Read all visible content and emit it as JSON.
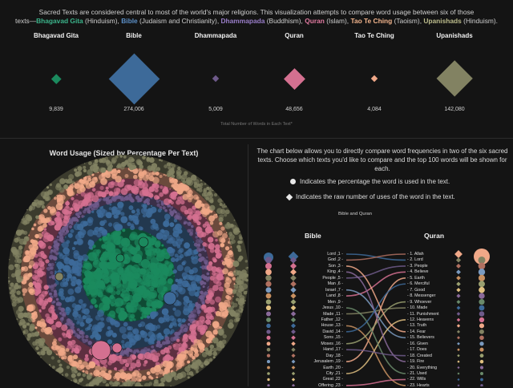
{
  "intro": {
    "line1": "Sacred Texts are considered central to most of the world's major religions. This visualization attempts to compare word usage between six of those",
    "line2_prefix": "texts—",
    "segments": [
      {
        "name": "Bhagavad Gita",
        "religion": " (Hinduism), ",
        "color": "#3bb38a"
      },
      {
        "name": "Bible",
        "religion": " (Judaism and Christianity), ",
        "color": "#5b8fc7"
      },
      {
        "name": "Dhammapada",
        "religion": " (Buddhism), ",
        "color": "#9a7ec9"
      },
      {
        "name": "Quran",
        "religion": " (Islam), ",
        "color": "#e07aa0"
      },
      {
        "name": "Tao Te Ching",
        "religion": " (Taoism), ",
        "color": "#f2b48c"
      },
      {
        "name": "Upanishads",
        "religion": " (Hinduism).",
        "color": "#bcbc8c"
      }
    ]
  },
  "texts": [
    {
      "name": "Bhagavad Gita",
      "count": "9,839",
      "value": 9839,
      "color": "#1b8a5e"
    },
    {
      "name": "Bible",
      "count": "274,006",
      "value": 274006,
      "color": "#3d6a99"
    },
    {
      "name": "Dhammapada",
      "count": "5,009",
      "value": 5009,
      "color": "#6e5a8a"
    },
    {
      "name": "Quran",
      "count": "48,656",
      "value": 48656,
      "color": "#d47090"
    },
    {
      "name": "Tao Te Ching",
      "count": "4,084",
      "value": 4084,
      "color": "#f0a888"
    },
    {
      "name": "Upanishads",
      "count": "142,080",
      "value": 142080,
      "color": "#828262"
    }
  ],
  "total_label": "Total Number of Words in Each Text*",
  "left_panel": {
    "title": "Word Usage (Sized by Percentage Per Text)"
  },
  "right_panel": {
    "description": "The chart below allows you to directly compare word frequencies in two of the six sacred texts. Choose which texts you'd like to compare and the top 100 words will be shown for each.",
    "legend_percentage": "Indicates the percentage the word is used in the text.",
    "legend_raw": "Indicates the raw number of uses of the word in the text.",
    "pair_label": "Bible and Quran",
    "left_title": "Bible",
    "right_title": "Quran",
    "bible_words": [
      "Lord ,1 -",
      "God ,2 -",
      "Son ,3 -",
      "King ,4 -",
      "People ,5 -",
      "Man ,6 -",
      "Israel ,7 -",
      "Land ,8 -",
      "Men ,9 -",
      "Jesus ,10 -",
      "Made ,11 -",
      "Father ,12 -",
      "House ,13 -",
      "David ,14 -",
      "Sons ,15 -",
      "Moses ,16 -",
      "Hand ,17 -",
      "Day ,18 -",
      "Jerusalem ,19 -",
      "Earth ,20 -",
      "City ,21 -",
      "Great ,22 -",
      "Offering ,23 -"
    ],
    "quran_words": [
      "- 1. Allah",
      "- 2. Lord",
      "- 3. People",
      "- 4. Believe",
      "- 5. Earth",
      "- 6. Merciful",
      "- 7. Good",
      "- 8. Messenger",
      "- 9. Whoever",
      "- 10. Made",
      "- 11. Punishment",
      "- 12. Heavens",
      "- 13. Truth",
      "- 14. Fear",
      "- 15. Believers",
      "- 16. Given",
      "- 17. Does",
      "- 18. Created",
      "- 19. Fire",
      "- 20. Everything",
      "- 21. Used",
      "- 22. Wills",
      "- 23. Hearts"
    ]
  },
  "colors": {
    "background": "#141414",
    "divider": "#2c2c2c"
  }
}
